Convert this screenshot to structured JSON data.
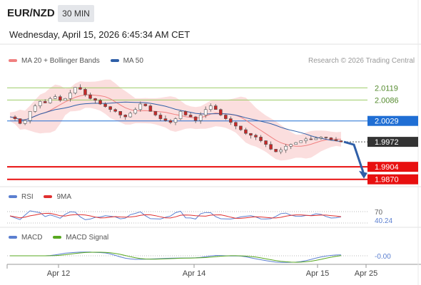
{
  "header": {
    "pair": "EUR/NZD",
    "timeframe": "30 MIN",
    "timestamp": "Wednesday, April 15, 2026 6:45:34 AM CET"
  },
  "legend": {
    "ma20": "MA 20 + Bollinger Bands",
    "ma50": "MA 50",
    "rsi": "RSI",
    "rsi_ma": "9MA",
    "macd": "MACD",
    "macd_signal": "MACD Signal"
  },
  "copyright": "Research © 2026 Trading Central",
  "colors": {
    "ma20": "#f08080",
    "ma50": "#2f5fa8",
    "bollinger_fill": "#fbdada",
    "resistance": "#9ccc65",
    "pivot": "#1f6ed4",
    "support": "#e81010",
    "current": "#333333",
    "candle_up": "#ffffff",
    "candle_down": "#c62828",
    "rsi": "#5b7fd0",
    "rsi_ma": "#e03030",
    "macd": "#5b7fd0",
    "macd_signal": "#58a820",
    "arrow": "#2f5fa8"
  },
  "chart_data": {
    "type": "candlestick",
    "x_ticks": [
      "Apr 12",
      "Apr 14",
      "Apr 15",
      "Apr 25"
    ],
    "y_range": [
      1.985,
      2.017
    ],
    "levels": [
      {
        "label": "2.0119",
        "value": 2.0119,
        "kind": "resistance"
      },
      {
        "label": "2.0086",
        "value": 2.0086,
        "kind": "resistance"
      },
      {
        "label": "2.0029",
        "value": 2.0029,
        "kind": "pivot"
      },
      {
        "label": "1.9972",
        "value": 1.9972,
        "kind": "current"
      },
      {
        "label": "1.9904",
        "value": 1.9904,
        "kind": "support"
      },
      {
        "label": "1.9870",
        "value": 1.987,
        "kind": "support"
      }
    ],
    "price_path": [
      2.004,
      2.0035,
      2.0022,
      2.003,
      2.0055,
      2.007,
      2.0082,
      2.0078,
      2.009,
      2.0095,
      2.0085,
      2.009,
      2.0105,
      2.012,
      2.0115,
      2.01,
      2.009,
      2.0085,
      2.0075,
      2.0068,
      2.006,
      2.0055,
      2.0045,
      2.004,
      2.005,
      2.006,
      2.0075,
      2.007,
      2.0055,
      2.0045,
      2.0035,
      2.003,
      2.0025,
      2.0035,
      2.0055,
      2.0045,
      2.004,
      2.003,
      2.0045,
      2.006,
      2.007,
      2.006,
      2.0045,
      2.0035,
      2.0025,
      2.0015,
      2.0005,
      1.9995,
      1.999,
      1.9985,
      1.9975,
      1.9965,
      1.9952,
      1.9945,
      1.995,
      1.996,
      1.9965,
      1.997,
      1.9975,
      1.998,
      1.9978,
      1.9982,
      1.9985,
      1.9983,
      1.9978,
      1.9975,
      1.9972
    ],
    "rsi": {
      "levels": [
        "70",
        "40.24"
      ],
      "current": 40.24
    },
    "macd": {
      "current": "-0.00"
    },
    "forecast_arrow": {
      "from": 1.9972,
      "to": 1.987
    }
  }
}
